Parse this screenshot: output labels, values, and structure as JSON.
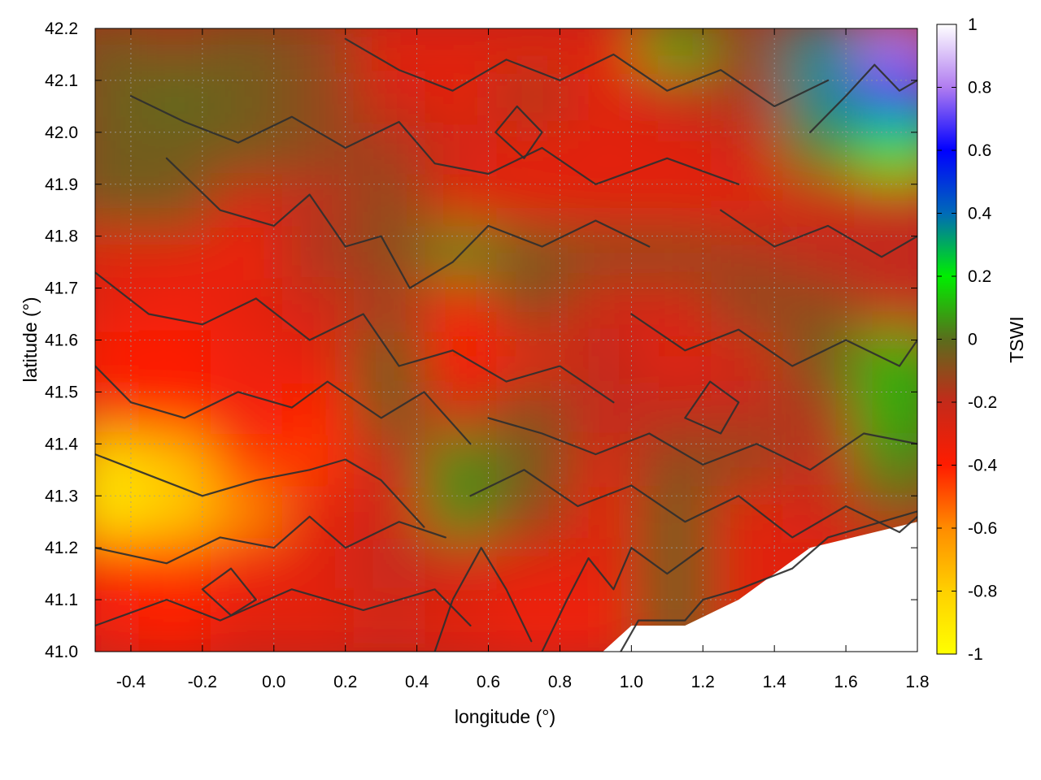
{
  "chart_data": {
    "type": "heatmap",
    "xlabel": "longitude (°)",
    "ylabel": "latitude (°)",
    "colorbar_label": "TSWI",
    "xlim": [
      -0.5,
      1.8
    ],
    "ylim": [
      41.0,
      42.2
    ],
    "x_ticks": [
      "-0.4",
      "-0.2",
      "0.0",
      "0.2",
      "0.4",
      "0.6",
      "0.8",
      "1.0",
      "1.2",
      "1.4",
      "1.6",
      "1.8"
    ],
    "y_ticks": [
      "41.0",
      "41.1",
      "41.2",
      "41.3",
      "41.4",
      "41.5",
      "41.6",
      "41.7",
      "41.8",
      "41.9",
      "42.0",
      "42.1",
      "42.2"
    ],
    "colorbar_range": [
      -1,
      1
    ],
    "colorbar_ticks": [
      "1",
      "0.8",
      "0.6",
      "0.4",
      "0.2",
      "0",
      "-0.2",
      "-0.4",
      "-0.6",
      "-0.8",
      "-1"
    ],
    "colorbar_stops": [
      {
        "value": -1.0,
        "color": "#ffff00"
      },
      {
        "value": -0.8,
        "color": "#ffd000"
      },
      {
        "value": -0.6,
        "color": "#ff8c00"
      },
      {
        "value": -0.4,
        "color": "#ff1c00"
      },
      {
        "value": -0.2,
        "color": "#c42a1a"
      },
      {
        "value": 0.0,
        "color": "#5a6d1c"
      },
      {
        "value": 0.2,
        "color": "#00ee00"
      },
      {
        "value": 0.4,
        "color": "#006ab8"
      },
      {
        "value": 0.6,
        "color": "#0000ff"
      },
      {
        "value": 0.8,
        "color": "#b07cf0"
      },
      {
        "value": 1.0,
        "color": "#ffffff"
      }
    ],
    "grid": true,
    "field_lon": [
      -0.45,
      -0.25,
      -0.05,
      0.15,
      0.35,
      0.55,
      0.75,
      0.95,
      1.15,
      1.35,
      1.55,
      1.75
    ],
    "field_lat": [
      42.15,
      42.05,
      41.95,
      41.85,
      41.75,
      41.65,
      41.55,
      41.45,
      41.35,
      41.25,
      41.15,
      41.05
    ],
    "tswi": [
      [
        -0.05,
        -0.1,
        -0.05,
        -0.1,
        -0.3,
        -0.3,
        -0.3,
        -0.3,
        0.1,
        -0.1,
        0.35,
        0.8
      ],
      [
        -0.05,
        0.0,
        -0.05,
        -0.1,
        -0.25,
        -0.3,
        -0.15,
        -0.3,
        -0.2,
        -0.15,
        0.35,
        0.55
      ],
      [
        -0.05,
        -0.05,
        -0.05,
        -0.1,
        -0.15,
        -0.25,
        -0.3,
        -0.3,
        -0.3,
        -0.25,
        0.05,
        0.2
      ],
      [
        -0.05,
        -0.05,
        -0.25,
        -0.2,
        -0.1,
        -0.3,
        -0.3,
        -0.3,
        -0.3,
        -0.3,
        -0.25,
        -0.2
      ],
      [
        -0.3,
        -0.3,
        -0.35,
        -0.15,
        -0.1,
        0.05,
        -0.05,
        -0.1,
        -0.1,
        -0.15,
        -0.2,
        -0.2
      ],
      [
        -0.3,
        -0.35,
        -0.3,
        -0.25,
        -0.15,
        -0.35,
        -0.1,
        -0.25,
        -0.25,
        -0.1,
        -0.1,
        -0.2
      ],
      [
        -0.4,
        -0.4,
        -0.35,
        -0.3,
        -0.05,
        -0.4,
        -0.3,
        -0.2,
        -0.3,
        -0.25,
        -0.05,
        0.1
      ],
      [
        -0.35,
        -0.4,
        -0.35,
        -0.4,
        -0.05,
        -0.25,
        -0.1,
        -0.2,
        -0.2,
        -0.2,
        -0.15,
        0.1
      ],
      [
        -0.85,
        -0.75,
        -0.45,
        -0.45,
        -0.2,
        0.05,
        -0.05,
        -0.25,
        -0.1,
        -0.1,
        -0.2,
        0.05
      ],
      [
        -0.9,
        -0.8,
        -0.6,
        -0.3,
        -0.25,
        0.05,
        -0.1,
        -0.3,
        -0.05,
        -0.3,
        -0.25,
        -0.1
      ],
      [
        -0.4,
        -0.45,
        -0.35,
        -0.3,
        -0.2,
        -0.25,
        -0.3,
        -0.3,
        -0.05,
        -0.3,
        -0.3,
        -0.3
      ],
      [
        -0.35,
        -0.4,
        -0.3,
        -0.3,
        -0.25,
        -0.3,
        -0.35,
        -0.35,
        -0.05,
        -0.3,
        -0.3,
        -0.3
      ]
    ],
    "no_data_region": [
      [
        0.92,
        41.0
      ],
      [
        1.0,
        41.05
      ],
      [
        1.15,
        41.05
      ],
      [
        1.3,
        41.1
      ],
      [
        1.5,
        41.2
      ],
      [
        1.8,
        41.25
      ],
      [
        1.8,
        41.0
      ]
    ],
    "contours": [
      [
        [
          -0.5,
          41.05
        ],
        [
          -0.3,
          41.1
        ],
        [
          -0.15,
          41.06
        ],
        [
          0.05,
          41.12
        ],
        [
          0.25,
          41.08
        ],
        [
          0.45,
          41.12
        ],
        [
          0.55,
          41.05
        ]
      ],
      [
        [
          -0.5,
          41.2
        ],
        [
          -0.3,
          41.17
        ],
        [
          -0.15,
          41.22
        ],
        [
          0.0,
          41.2
        ],
        [
          0.1,
          41.26
        ],
        [
          0.2,
          41.2
        ],
        [
          0.35,
          41.25
        ],
        [
          0.48,
          41.22
        ]
      ],
      [
        [
          -0.5,
          41.38
        ],
        [
          -0.35,
          41.34
        ],
        [
          -0.2,
          41.3
        ],
        [
          -0.05,
          41.33
        ],
        [
          0.1,
          41.35
        ],
        [
          0.2,
          41.37
        ],
        [
          0.3,
          41.33
        ],
        [
          0.42,
          41.24
        ]
      ],
      [
        [
          -0.5,
          41.55
        ],
        [
          -0.4,
          41.48
        ],
        [
          -0.25,
          41.45
        ],
        [
          -0.1,
          41.5
        ],
        [
          0.05,
          41.47
        ],
        [
          0.15,
          41.52
        ],
        [
          0.3,
          41.45
        ],
        [
          0.42,
          41.5
        ],
        [
          0.55,
          41.4
        ]
      ],
      [
        [
          -0.5,
          41.73
        ],
        [
          -0.35,
          41.65
        ],
        [
          -0.2,
          41.63
        ],
        [
          -0.05,
          41.68
        ],
        [
          0.1,
          41.6
        ],
        [
          0.25,
          41.65
        ],
        [
          0.35,
          41.55
        ],
        [
          0.5,
          41.58
        ],
        [
          0.65,
          41.52
        ],
        [
          0.8,
          41.55
        ],
        [
          0.95,
          41.48
        ]
      ],
      [
        [
          -0.3,
          41.95
        ],
        [
          -0.15,
          41.85
        ],
        [
          0.0,
          41.82
        ],
        [
          0.1,
          41.88
        ],
        [
          0.2,
          41.78
        ],
        [
          0.3,
          41.8
        ],
        [
          0.38,
          41.7
        ],
        [
          0.5,
          41.75
        ],
        [
          0.6,
          41.82
        ],
        [
          0.75,
          41.78
        ],
        [
          0.9,
          41.83
        ],
        [
          1.05,
          41.78
        ]
      ],
      [
        [
          -0.4,
          42.07
        ],
        [
          -0.25,
          42.02
        ],
        [
          -0.1,
          41.98
        ],
        [
          0.05,
          42.03
        ],
        [
          0.2,
          41.97
        ],
        [
          0.35,
          42.02
        ],
        [
          0.45,
          41.94
        ],
        [
          0.6,
          41.92
        ],
        [
          0.75,
          41.97
        ],
        [
          0.9,
          41.9
        ],
        [
          1.1,
          41.95
        ],
        [
          1.3,
          41.9
        ]
      ],
      [
        [
          0.2,
          42.18
        ],
        [
          0.35,
          42.12
        ],
        [
          0.5,
          42.08
        ],
        [
          0.65,
          42.14
        ],
        [
          0.8,
          42.1
        ],
        [
          0.95,
          42.15
        ],
        [
          1.1,
          42.08
        ],
        [
          1.25,
          42.12
        ],
        [
          1.4,
          42.05
        ],
        [
          1.55,
          42.1
        ]
      ],
      [
        [
          0.55,
          41.3
        ],
        [
          0.7,
          41.35
        ],
        [
          0.85,
          41.28
        ],
        [
          1.0,
          41.32
        ],
        [
          1.15,
          41.25
        ],
        [
          1.3,
          41.3
        ],
        [
          1.45,
          41.22
        ],
        [
          1.6,
          41.28
        ],
        [
          1.75,
          41.23
        ],
        [
          1.8,
          41.26
        ]
      ],
      [
        [
          0.6,
          41.45
        ],
        [
          0.75,
          41.42
        ],
        [
          0.9,
          41.38
        ],
        [
          1.05,
          41.42
        ],
        [
          1.2,
          41.36
        ],
        [
          1.35,
          41.4
        ],
        [
          1.5,
          41.35
        ],
        [
          1.65,
          41.42
        ],
        [
          1.8,
          41.4
        ]
      ],
      [
        [
          1.0,
          41.65
        ],
        [
          1.15,
          41.58
        ],
        [
          1.3,
          41.62
        ],
        [
          1.45,
          41.55
        ],
        [
          1.6,
          41.6
        ],
        [
          1.75,
          41.55
        ],
        [
          1.8,
          41.6
        ]
      ],
      [
        [
          1.25,
          41.85
        ],
        [
          1.4,
          41.78
        ],
        [
          1.55,
          41.82
        ],
        [
          1.7,
          41.76
        ],
        [
          1.8,
          41.8
        ]
      ],
      [
        [
          1.5,
          42.0
        ],
        [
          1.6,
          42.07
        ],
        [
          1.68,
          42.13
        ],
        [
          1.75,
          42.08
        ],
        [
          1.8,
          42.1
        ]
      ],
      [
        [
          0.45,
          41.0
        ],
        [
          0.5,
          41.1
        ],
        [
          0.58,
          41.2
        ],
        [
          0.65,
          41.12
        ],
        [
          0.72,
          41.02
        ]
      ],
      [
        [
          0.75,
          41.0
        ],
        [
          0.82,
          41.1
        ],
        [
          0.88,
          41.18
        ],
        [
          0.95,
          41.12
        ],
        [
          1.0,
          41.2
        ],
        [
          1.1,
          41.15
        ],
        [
          1.2,
          41.2
        ]
      ],
      [
        [
          -0.2,
          41.12
        ],
        [
          -0.12,
          41.16
        ],
        [
          -0.05,
          41.1
        ],
        [
          -0.12,
          41.07
        ],
        [
          -0.2,
          41.12
        ]
      ],
      [
        [
          0.62,
          42.0
        ],
        [
          0.68,
          42.05
        ],
        [
          0.75,
          42.0
        ],
        [
          0.7,
          41.95
        ],
        [
          0.62,
          42.0
        ]
      ],
      [
        [
          1.15,
          41.45
        ],
        [
          1.22,
          41.52
        ],
        [
          1.3,
          41.48
        ],
        [
          1.25,
          41.42
        ],
        [
          1.15,
          41.45
        ]
      ]
    ],
    "coast_line": [
      [
        0.97,
        41.0
      ],
      [
        1.02,
        41.06
      ],
      [
        1.15,
        41.06
      ],
      [
        1.2,
        41.1
      ],
      [
        1.3,
        41.12
      ],
      [
        1.45,
        41.16
      ],
      [
        1.55,
        41.22
      ],
      [
        1.65,
        41.24
      ],
      [
        1.75,
        41.26
      ],
      [
        1.8,
        41.27
      ]
    ]
  }
}
